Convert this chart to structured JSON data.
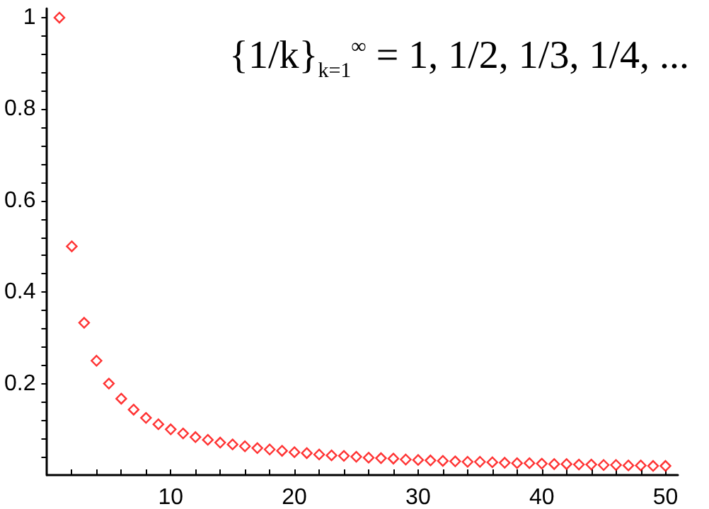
{
  "chart_data": {
    "type": "scatter",
    "marker": "diamond",
    "grid": false,
    "annotations": [
      "{1/k}$_{k=1}$$^{∞}$ = 1, 1/2, 1/3, 1/4, ..."
    ],
    "xlim": [
      0,
      51
    ],
    "xticks": [
      {
        "value": 2,
        "label": null
      },
      {
        "value": 4,
        "label": null
      },
      {
        "value": 6,
        "label": null
      },
      {
        "value": 8,
        "label": null
      },
      10,
      {
        "value": 12,
        "label": null
      },
      {
        "value": 14,
        "label": null
      },
      {
        "value": 16,
        "label": null
      },
      {
        "value": 18,
        "label": null
      },
      20,
      {
        "value": 22,
        "label": null
      },
      {
        "value": 24,
        "label": null
      },
      {
        "value": 26,
        "label": null
      },
      {
        "value": 28,
        "label": null
      },
      30,
      {
        "value": 32,
        "label": null
      },
      {
        "value": 34,
        "label": null
      },
      {
        "value": 36,
        "label": null
      },
      {
        "value": 38,
        "label": null
      },
      40,
      {
        "value": 42,
        "label": null
      },
      {
        "value": 44,
        "label": null
      },
      {
        "value": 46,
        "label": null
      },
      {
        "value": 48,
        "label": null
      },
      50
    ],
    "ylim": [
      0,
      1.02
    ],
    "yticks": [
      {
        "value": 0.04,
        "label": null
      },
      {
        "value": 0.08,
        "label": null
      },
      {
        "value": 0.12,
        "label": null
      },
      {
        "value": 0.16,
        "label": null
      },
      0.2,
      {
        "value": 0.24,
        "label": null
      },
      {
        "value": 0.28,
        "label": null
      },
      {
        "value": 0.32,
        "label": null
      },
      {
        "value": 0.36,
        "label": null
      },
      0.4,
      {
        "value": 0.44,
        "label": null
      },
      {
        "value": 0.48,
        "label": null
      },
      {
        "value": 0.52,
        "label": null
      },
      {
        "value": 0.56,
        "label": null
      },
      0.6,
      {
        "value": 0.64,
        "label": null
      },
      {
        "value": 0.68,
        "label": null
      },
      {
        "value": 0.72,
        "label": null
      },
      {
        "value": 0.76,
        "label": null
      },
      0.8,
      {
        "value": 0.84,
        "label": null
      },
      {
        "value": 0.88,
        "label": null
      },
      {
        "value": 0.92,
        "label": null
      },
      {
        "value": 0.96,
        "label": null
      },
      1
    ],
    "x": [
      1,
      2,
      3,
      4,
      5,
      6,
      7,
      8,
      9,
      10,
      11,
      12,
      13,
      14,
      15,
      16,
      17,
      18,
      19,
      20,
      21,
      22,
      23,
      24,
      25,
      26,
      27,
      28,
      29,
      30,
      31,
      32,
      33,
      34,
      35,
      36,
      37,
      38,
      39,
      40,
      41,
      42,
      43,
      44,
      45,
      46,
      47,
      48,
      49,
      50
    ],
    "series": [
      {
        "color": "#ff0000",
        "values": [
          1,
          0.5,
          0.333,
          0.25,
          0.2,
          0.167,
          0.143,
          0.125,
          0.111,
          0.1,
          0.091,
          0.083,
          0.077,
          0.071,
          0.067,
          0.063,
          0.059,
          0.056,
          0.053,
          0.05,
          0.048,
          0.045,
          0.043,
          0.042,
          0.04,
          0.038,
          0.037,
          0.036,
          0.034,
          0.033,
          0.032,
          0.031,
          0.03,
          0.029,
          0.029,
          0.028,
          0.027,
          0.026,
          0.026,
          0.025,
          0.024,
          0.024,
          0.023,
          0.023,
          0.022,
          0.022,
          0.021,
          0.021,
          0.02,
          0.02
        ]
      }
    ]
  }
}
